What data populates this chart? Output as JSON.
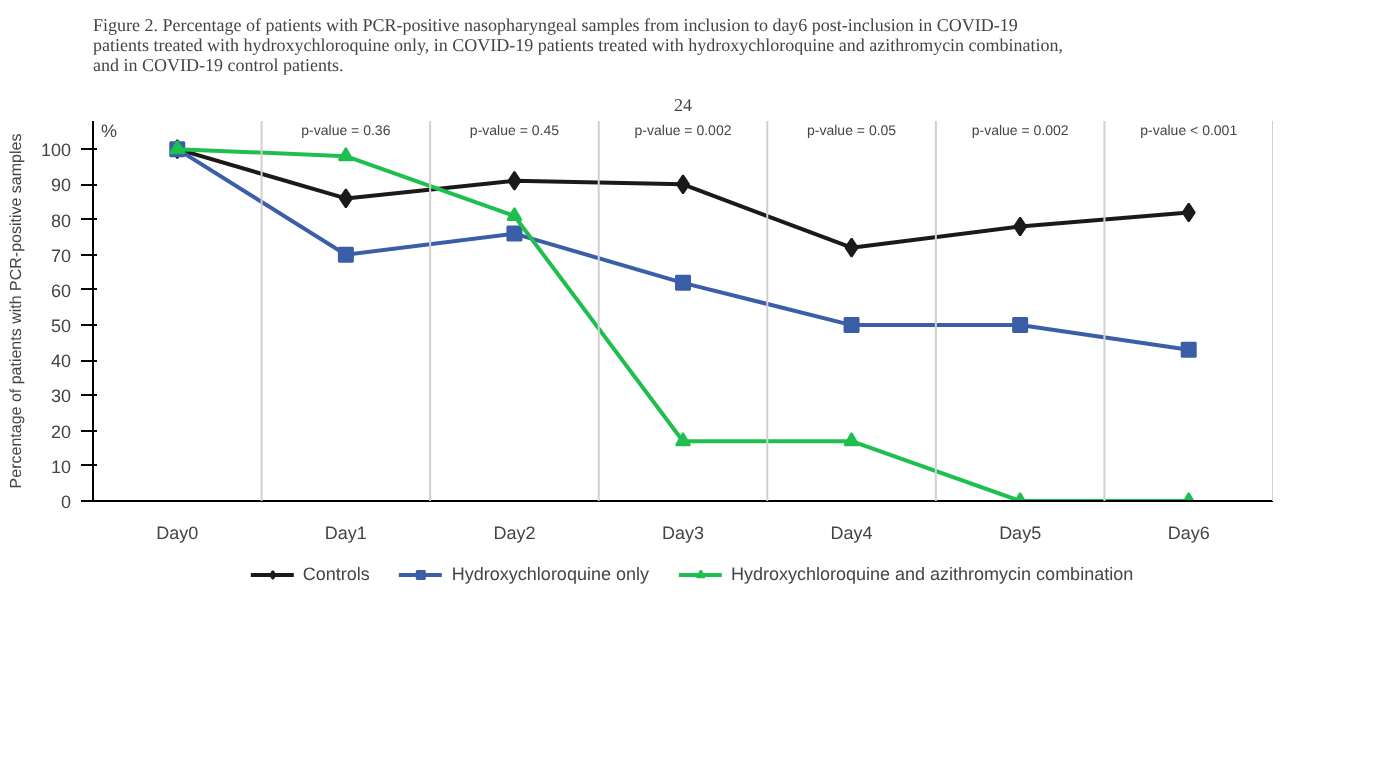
{
  "chart_data": {
    "type": "line",
    "title": "Figure 2. Percentage of patients with PCR-positive nasopharyngeal samples from inclusion to day6 post-inclusion in COVID-19 patients treated with hydroxychloroquine only, in COVID-19 patients treated with hydroxychloroquine and azithromycin combination, and in COVID-19 control patients.",
    "ylabel": "Percentage of patients with PCR-positive samples",
    "annotations": [
      "24",
      "%",
      "p-value = 0.36",
      "p-value = 0.45",
      "p-value = 0.002",
      "p-value = 0.05",
      "p-value = 0.002",
      "p-value < 0.001"
    ],
    "categories": [
      "Day0",
      "Day1",
      "Day2",
      "Day3",
      "Day4",
      "Day5",
      "Day6"
    ],
    "series": [
      {
        "name": "Controls",
        "color": "#1a1a1a",
        "marker": "diamond",
        "values": [
          100,
          86,
          91,
          90,
          72,
          78,
          82
        ]
      },
      {
        "name": "Hydroxychloroquine only",
        "color": "#3a5ea8",
        "marker": "square",
        "values": [
          100,
          70,
          76,
          62,
          50,
          50,
          43
        ]
      },
      {
        "name": "Hydroxychloroquine and azithromycin combination",
        "color": "#1fbf4f",
        "marker": "triangle",
        "values": [
          100,
          98,
          81,
          17,
          17,
          0,
          0
        ]
      }
    ],
    "ylim": [
      0,
      108
    ],
    "yticks": [
      0,
      10,
      20,
      30,
      40,
      50,
      60,
      70,
      80,
      90,
      100
    ],
    "grid": "x",
    "legend": "bottom",
    "line_style": "solid"
  }
}
